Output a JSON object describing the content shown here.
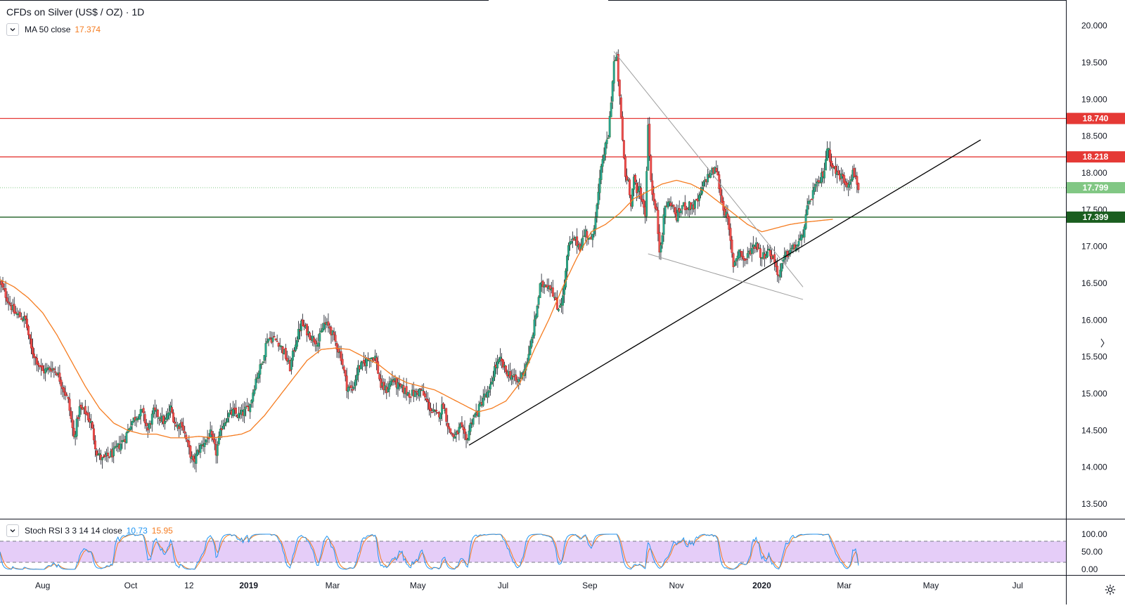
{
  "header": {
    "symbol": "CFDs on Silver (US$ / OZ)",
    "interval": "1D",
    "separator": "·"
  },
  "indicators": {
    "ma": {
      "label": "MA 50 close",
      "value": "17.374",
      "color": "#f57c20"
    },
    "stoch_rsi": {
      "label": "Stoch RSI 3 3 14 14 close",
      "k_value": "10.73",
      "d_value": "15.95",
      "k_color": "#2196f3",
      "d_color": "#f57c20"
    }
  },
  "colors": {
    "up": "#26a69a",
    "up_border": "#2e7d32",
    "down": "#ef5350",
    "down_border": "#b71c1c",
    "resistance": "#e53935",
    "support": "#1b5e20",
    "current": "#81c784",
    "trend": "#000000",
    "wedge": "#9e9e9e",
    "rsi_band": "#e1c4f7"
  },
  "price_axis": {
    "labels": [
      "20.000",
      "19.500",
      "19.000",
      "18.500",
      "18.000",
      "17.500",
      "17.000",
      "16.500",
      "16.000",
      "15.500",
      "15.000",
      "14.500",
      "14.000",
      "13.500"
    ],
    "tags": [
      {
        "name": "resistance-upper",
        "label": "18.740",
        "value": 18.74,
        "color": "#e53935"
      },
      {
        "name": "resistance-lower",
        "label": "18.218",
        "value": 18.218,
        "color": "#e53935"
      },
      {
        "name": "current-price",
        "label": "17.799",
        "value": 17.799,
        "color": "#81c784"
      },
      {
        "name": "support",
        "label": "17.399",
        "value": 17.399,
        "color": "#1b5e20"
      }
    ]
  },
  "rsi_axis": {
    "labels": [
      "100.00",
      "50.00",
      "0.00"
    ]
  },
  "time_axis": {
    "labels": [
      {
        "text": "Aug",
        "t": 30
      },
      {
        "text": "Oct",
        "t": 92
      },
      {
        "text": "12",
        "t": 133
      },
      {
        "text": "2019",
        "t": 175
      },
      {
        "text": "Mar",
        "t": 234
      },
      {
        "text": "May",
        "t": 294
      },
      {
        "text": "Jul",
        "t": 354
      },
      {
        "text": "Sep",
        "t": 415
      },
      {
        "text": "Nov",
        "t": 476
      },
      {
        "text": "2020",
        "t": 536
      },
      {
        "text": "Mar",
        "t": 594
      },
      {
        "text": "May",
        "t": 655
      },
      {
        "text": "Jul",
        "t": 716
      }
    ]
  },
  "chart_data": {
    "type": "candlestick",
    "title": "CFDs on Silver (US$ / OZ) · 1D",
    "ylim": [
      13.3,
      20.35
    ],
    "xlim": [
      0,
      750
    ],
    "price_anchors": [
      [
        0,
        16.5
      ],
      [
        5,
        16.3
      ],
      [
        10,
        16.1
      ],
      [
        14,
        16.05
      ],
      [
        18,
        16.0
      ],
      [
        22,
        15.6
      ],
      [
        26,
        15.45
      ],
      [
        30,
        15.3
      ],
      [
        36,
        15.35
      ],
      [
        40,
        15.3
      ],
      [
        44,
        15.1
      ],
      [
        48,
        14.9
      ],
      [
        52,
        14.4
      ],
      [
        56,
        14.8
      ],
      [
        60,
        14.75
      ],
      [
        64,
        14.6
      ],
      [
        68,
        14.2
      ],
      [
        72,
        14.1
      ],
      [
        76,
        14.15
      ],
      [
        80,
        14.2
      ],
      [
        84,
        14.3
      ],
      [
        88,
        14.4
      ],
      [
        92,
        14.6
      ],
      [
        96,
        14.7
      ],
      [
        100,
        14.75
      ],
      [
        104,
        14.5
      ],
      [
        108,
        14.75
      ],
      [
        112,
        14.7
      ],
      [
        116,
        14.6
      ],
      [
        120,
        14.8
      ],
      [
        124,
        14.55
      ],
      [
        128,
        14.6
      ],
      [
        132,
        14.3
      ],
      [
        136,
        14.05
      ],
      [
        140,
        14.25
      ],
      [
        144,
        14.35
      ],
      [
        148,
        14.45
      ],
      [
        152,
        14.2
      ],
      [
        156,
        14.55
      ],
      [
        160,
        14.7
      ],
      [
        164,
        14.75
      ],
      [
        168,
        14.7
      ],
      [
        172,
        14.75
      ],
      [
        176,
        14.85
      ],
      [
        180,
        15.2
      ],
      [
        184,
        15.4
      ],
      [
        188,
        15.75
      ],
      [
        192,
        15.75
      ],
      [
        196,
        15.7
      ],
      [
        200,
        15.55
      ],
      [
        204,
        15.35
      ],
      [
        208,
        15.7
      ],
      [
        212,
        15.95
      ],
      [
        216,
        15.85
      ],
      [
        220,
        15.75
      ],
      [
        224,
        15.7
      ],
      [
        228,
        15.95
      ],
      [
        232,
        15.9
      ],
      [
        236,
        15.7
      ],
      [
        240,
        15.5
      ],
      [
        244,
        15.1
      ],
      [
        248,
        15.05
      ],
      [
        252,
        15.35
      ],
      [
        256,
        15.4
      ],
      [
        260,
        15.5
      ],
      [
        264,
        15.5
      ],
      [
        268,
        15.1
      ],
      [
        272,
        15.05
      ],
      [
        276,
        15.2
      ],
      [
        280,
        15.1
      ],
      [
        284,
        15.05
      ],
      [
        288,
        15.0
      ],
      [
        292,
        15.0
      ],
      [
        296,
        15.05
      ],
      [
        300,
        14.9
      ],
      [
        304,
        14.75
      ],
      [
        308,
        14.7
      ],
      [
        312,
        14.85
      ],
      [
        316,
        14.5
      ],
      [
        320,
        14.4
      ],
      [
        324,
        14.55
      ],
      [
        328,
        14.35
      ],
      [
        332,
        14.65
      ],
      [
        336,
        14.75
      ],
      [
        340,
        14.95
      ],
      [
        344,
        15.0
      ],
      [
        348,
        15.35
      ],
      [
        352,
        15.45
      ],
      [
        356,
        15.3
      ],
      [
        360,
        15.25
      ],
      [
        364,
        15.15
      ],
      [
        368,
        15.3
      ],
      [
        372,
        15.5
      ],
      [
        376,
        15.95
      ],
      [
        380,
        16.45
      ],
      [
        384,
        16.5
      ],
      [
        388,
        16.45
      ],
      [
        392,
        16.15
      ],
      [
        396,
        16.3
      ],
      [
        400,
        17.0
      ],
      [
        404,
        17.1
      ],
      [
        408,
        17.0
      ],
      [
        412,
        17.2
      ],
      [
        416,
        17.05
      ],
      [
        420,
        17.55
      ],
      [
        424,
        18.2
      ],
      [
        428,
        18.5
      ],
      [
        432,
        19.5
      ],
      [
        434,
        19.55
      ],
      [
        436,
        19.0
      ],
      [
        438,
        18.45
      ],
      [
        440,
        17.95
      ],
      [
        442,
        17.9
      ],
      [
        444,
        17.6
      ],
      [
        446,
        17.95
      ],
      [
        448,
        17.7
      ],
      [
        450,
        17.8
      ],
      [
        452,
        17.6
      ],
      [
        454,
        17.45
      ],
      [
        456,
        18.65
      ],
      [
        458,
        17.9
      ],
      [
        460,
        17.6
      ],
      [
        462,
        17.45
      ],
      [
        464,
        16.95
      ],
      [
        466,
        17.2
      ],
      [
        468,
        17.55
      ],
      [
        472,
        17.6
      ],
      [
        476,
        17.4
      ],
      [
        480,
        17.55
      ],
      [
        484,
        17.55
      ],
      [
        488,
        17.55
      ],
      [
        492,
        17.65
      ],
      [
        496,
        17.9
      ],
      [
        500,
        18.0
      ],
      [
        504,
        18.05
      ],
      [
        508,
        17.6
      ],
      [
        512,
        17.35
      ],
      [
        516,
        16.75
      ],
      [
        520,
        16.95
      ],
      [
        524,
        16.8
      ],
      [
        528,
        16.95
      ],
      [
        532,
        17.05
      ],
      [
        536,
        16.85
      ],
      [
        540,
        16.95
      ],
      [
        544,
        16.85
      ],
      [
        548,
        16.6
      ],
      [
        552,
        16.85
      ],
      [
        556,
        16.95
      ],
      [
        560,
        17.0
      ],
      [
        564,
        17.1
      ],
      [
        568,
        17.5
      ],
      [
        572,
        17.75
      ],
      [
        576,
        17.85
      ],
      [
        580,
        18.05
      ],
      [
        582,
        18.35
      ],
      [
        584,
        18.2
      ],
      [
        588,
        18.0
      ],
      [
        592,
        17.95
      ],
      [
        596,
        17.85
      ],
      [
        600,
        18.0
      ],
      [
        602,
        17.95
      ],
      [
        604,
        17.8
      ]
    ],
    "ma50_anchors": [
      [
        0,
        16.55
      ],
      [
        10,
        16.45
      ],
      [
        20,
        16.3
      ],
      [
        30,
        16.1
      ],
      [
        40,
        15.8
      ],
      [
        50,
        15.45
      ],
      [
        60,
        15.1
      ],
      [
        70,
        14.8
      ],
      [
        80,
        14.6
      ],
      [
        90,
        14.5
      ],
      [
        100,
        14.45
      ],
      [
        110,
        14.45
      ],
      [
        120,
        14.4
      ],
      [
        130,
        14.4
      ],
      [
        140,
        14.42
      ],
      [
        150,
        14.4
      ],
      [
        160,
        14.42
      ],
      [
        170,
        14.45
      ],
      [
        176,
        14.5
      ],
      [
        186,
        14.7
      ],
      [
        196,
        14.95
      ],
      [
        206,
        15.2
      ],
      [
        216,
        15.45
      ],
      [
        226,
        15.6
      ],
      [
        236,
        15.62
      ],
      [
        246,
        15.6
      ],
      [
        256,
        15.5
      ],
      [
        266,
        15.4
      ],
      [
        276,
        15.25
      ],
      [
        286,
        15.15
      ],
      [
        296,
        15.1
      ],
      [
        306,
        15.05
      ],
      [
        316,
        14.95
      ],
      [
        326,
        14.85
      ],
      [
        336,
        14.75
      ],
      [
        346,
        14.8
      ],
      [
        356,
        14.9
      ],
      [
        366,
        15.15
      ],
      [
        376,
        15.6
      ],
      [
        386,
        16.0
      ],
      [
        396,
        16.45
      ],
      [
        406,
        16.85
      ],
      [
        416,
        17.2
      ],
      [
        426,
        17.3
      ],
      [
        436,
        17.45
      ],
      [
        446,
        17.65
      ],
      [
        456,
        17.75
      ],
      [
        466,
        17.85
      ],
      [
        476,
        17.9
      ],
      [
        486,
        17.85
      ],
      [
        496,
        17.75
      ],
      [
        506,
        17.6
      ],
      [
        516,
        17.45
      ],
      [
        526,
        17.3
      ],
      [
        536,
        17.2
      ],
      [
        546,
        17.25
      ],
      [
        556,
        17.3
      ],
      [
        566,
        17.33
      ],
      [
        576,
        17.35
      ],
      [
        586,
        17.37
      ]
    ],
    "horizontal_lines": [
      {
        "name": "resistance-upper-line",
        "value": 18.74,
        "color": "#e53935"
      },
      {
        "name": "resistance-lower-line",
        "value": 18.218,
        "color": "#e53935"
      },
      {
        "name": "support-line",
        "value": 17.399,
        "color": "#1b5e20"
      },
      {
        "name": "current-price-line",
        "value": 17.799,
        "color": "#81c784",
        "dotted": true
      }
    ],
    "trend_lines": [
      {
        "name": "ascending-trendline",
        "from": [
          330,
          14.3
        ],
        "to": [
          690,
          18.45
        ],
        "color": "#000000"
      },
      {
        "name": "wedge-upper-line",
        "from": [
          432,
          19.65
        ],
        "to": [
          565,
          16.45
        ],
        "color": "#9e9e9e"
      },
      {
        "name": "wedge-lower-line",
        "from": [
          456,
          16.9
        ],
        "to": [
          565,
          16.28
        ],
        "color": "#9e9e9e"
      }
    ],
    "stoch_rsi": {
      "ylim": [
        0,
        100
      ],
      "upper_band": 80,
      "lower_band": 20,
      "k_last": 10.73,
      "d_last": 15.95
    }
  }
}
